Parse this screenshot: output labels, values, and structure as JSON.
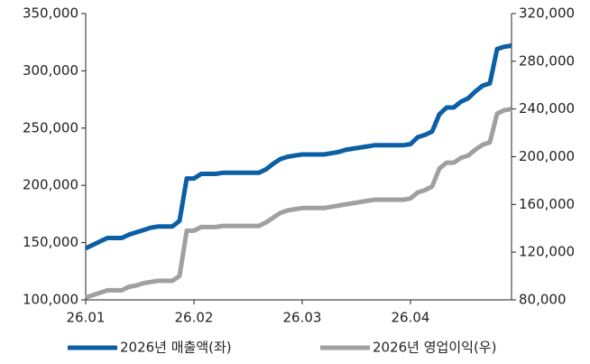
{
  "chart_data": {
    "type": "line",
    "categories": [
      "26.01",
      null,
      null,
      null,
      null,
      null,
      null,
      null,
      null,
      null,
      null,
      null,
      null,
      null,
      null,
      "26.02",
      null,
      null,
      null,
      null,
      null,
      null,
      null,
      null,
      null,
      null,
      null,
      null,
      null,
      null,
      "26.03",
      null,
      null,
      null,
      null,
      null,
      null,
      null,
      null,
      null,
      null,
      null,
      null,
      null,
      null,
      "26.04",
      null,
      null,
      null,
      null,
      null,
      null,
      null,
      null,
      null,
      null,
      null,
      null,
      null,
      null
    ],
    "series": [
      {
        "name": "2026년 매출액(좌)",
        "color": "#0b5fa5",
        "values": [
          145000,
          148000,
          151000,
          154000,
          154000,
          154000,
          157000,
          159000,
          161000,
          163000,
          164000,
          164000,
          164000,
          169000,
          206000,
          206000,
          210000,
          210000,
          210000,
          211000,
          211000,
          211000,
          211000,
          211000,
          211000,
          214000,
          219000,
          223000,
          225000,
          226000,
          227000,
          227000,
          227000,
          227000,
          228000,
          229000,
          231000,
          232000,
          233000,
          234000,
          235000,
          235000,
          235000,
          235000,
          235000,
          236000,
          242000,
          244000,
          247000,
          262000,
          268000,
          268000,
          273000,
          276000,
          282000,
          287000,
          289000,
          319000,
          321000,
          322000
        ]
      },
      {
        "name": "2026년 영업이익(우)",
        "color": "#a0a0a0",
        "axis": "y2",
        "values": [
          82000,
          84000,
          86000,
          88000,
          88000,
          88000,
          91000,
          92000,
          94000,
          95000,
          96000,
          96000,
          96000,
          100000,
          138000,
          138000,
          141000,
          141000,
          141000,
          142000,
          142000,
          142000,
          142000,
          142000,
          142000,
          145000,
          149000,
          153000,
          155000,
          156000,
          157000,
          157000,
          157000,
          157000,
          158000,
          159000,
          160000,
          161000,
          162000,
          163000,
          164000,
          164000,
          164000,
          164000,
          164000,
          165000,
          170000,
          172000,
          175000,
          190000,
          195000,
          195000,
          199000,
          201000,
          206000,
          210000,
          212000,
          236000,
          239000,
          240000
        ]
      }
    ],
    "ylim": [
      100000,
      350000
    ],
    "yticks": [
      {
        "value": 100000,
        "label": "100,000"
      },
      {
        "value": 150000,
        "label": "150,000"
      },
      {
        "value": 200000,
        "label": "200,000"
      },
      {
        "value": 250000,
        "label": "250,000"
      },
      {
        "value": 300000,
        "label": "300,000"
      },
      {
        "value": 350000,
        "label": "350,000"
      }
    ],
    "y2lim": [
      80000,
      320000
    ],
    "y2ticks": [
      {
        "value": 80000,
        "label": "80,000"
      },
      {
        "value": 120000,
        "label": "120,000"
      },
      {
        "value": 160000,
        "label": "160,000"
      },
      {
        "value": 200000,
        "label": "200,000"
      },
      {
        "value": 240000,
        "label": "240,000"
      },
      {
        "value": 280000,
        "label": "280,000"
      },
      {
        "value": 320000,
        "label": "320,000"
      }
    ],
    "grid": false,
    "legend": "bottom"
  }
}
